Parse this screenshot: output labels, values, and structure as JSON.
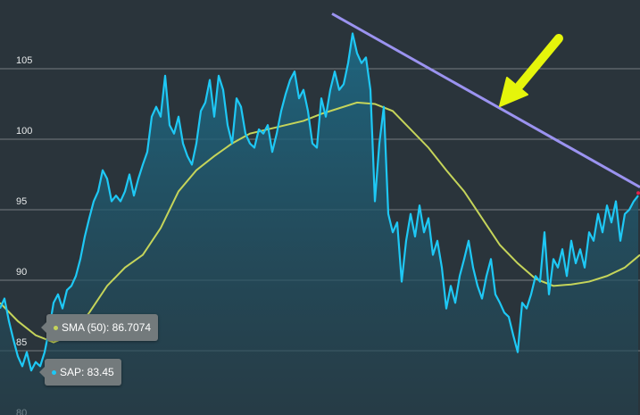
{
  "chart_data": {
    "type": "line",
    "title": "",
    "xlabel": "",
    "ylabel": "",
    "ylim": [
      80,
      110
    ],
    "y_ticks": [
      "80",
      "85",
      "90",
      "95",
      "100",
      "105"
    ],
    "grid": true,
    "series": [
      {
        "name": "SAP",
        "color": "#1ec8f5",
        "area": true,
        "values": [
          88.0,
          88.7,
          87.1,
          85.8,
          84.6,
          83.9,
          84.9,
          83.6,
          84.2,
          83.9,
          84.9,
          86.5,
          88.4,
          89.0,
          88.0,
          89.3,
          89.6,
          90.3,
          91.5,
          93.1,
          94.4,
          95.6,
          96.3,
          97.8,
          97.2,
          95.6,
          96.0,
          95.6,
          96.3,
          97.5,
          96.0,
          97.2,
          98.2,
          99.1,
          101.6,
          102.3,
          101.6,
          104.5,
          101.0,
          100.4,
          101.6,
          99.7,
          98.8,
          98.2,
          99.7,
          102.0,
          102.6,
          104.2,
          101.6,
          104.5,
          103.5,
          101.0,
          99.7,
          102.9,
          102.3,
          100.4,
          99.7,
          99.4,
          100.7,
          100.4,
          101.0,
          99.1,
          100.4,
          102.0,
          103.2,
          104.2,
          104.8,
          102.9,
          103.5,
          102.0,
          99.7,
          99.4,
          102.9,
          101.6,
          103.5,
          104.8,
          103.5,
          103.9,
          105.4,
          107.5,
          106.1,
          105.4,
          105.8,
          103.5,
          95.6,
          99.7,
          102.3,
          94.7,
          93.4,
          94.1,
          89.9,
          92.8,
          94.7,
          93.1,
          95.3,
          93.4,
          94.4,
          91.8,
          92.8,
          90.9,
          88.0,
          89.6,
          88.4,
          90.3,
          91.5,
          92.8,
          90.9,
          89.6,
          88.7,
          90.3,
          91.5,
          89.0,
          88.4,
          87.7,
          87.4,
          86.1,
          84.9,
          88.4,
          88.0,
          89.0,
          90.3,
          89.9,
          93.4,
          89.0,
          91.5,
          90.9,
          92.2,
          90.3,
          92.8,
          91.2,
          92.2,
          90.9,
          93.4,
          92.8,
          94.7,
          93.4,
          95.3,
          94.1,
          95.6,
          92.8,
          94.7,
          95.0,
          95.6,
          96.0
        ]
      },
      {
        "name": "SMA (50)",
        "color": "#c5d45a",
        "x": [
          0,
          4,
          8,
          12,
          16,
          20,
          24,
          28,
          32,
          36,
          40,
          44,
          48,
          52,
          56,
          60,
          64,
          68,
          72,
          76,
          80,
          84,
          88,
          92,
          96,
          100,
          104,
          108,
          112,
          116,
          120,
          124,
          128,
          132,
          136,
          140,
          143.4
        ],
        "values": [
          88.4,
          87.1,
          86.1,
          85.6,
          86.1,
          87.7,
          89.6,
          90.9,
          91.8,
          93.7,
          96.3,
          97.8,
          98.8,
          99.7,
          100.4,
          100.7,
          101.0,
          101.3,
          101.8,
          102.2,
          102.6,
          102.5,
          102.0,
          100.7,
          99.4,
          97.8,
          96.3,
          94.4,
          92.5,
          91.2,
          90.1,
          89.6,
          89.7,
          89.9,
          90.3,
          90.9,
          91.8
        ]
      }
    ],
    "trendline": {
      "color": "#9b93f0",
      "x": [
        74.4,
        143.4
      ],
      "values": [
        108.9,
        96.6
      ]
    },
    "annotation_arrow_color": "#e5f50b",
    "tooltips": [
      {
        "label": "SMA (50): 86.7074",
        "color": "#c5d45a"
      },
      {
        "label": "SAP: 83.45",
        "color": "#1ec8f5"
      }
    ]
  }
}
